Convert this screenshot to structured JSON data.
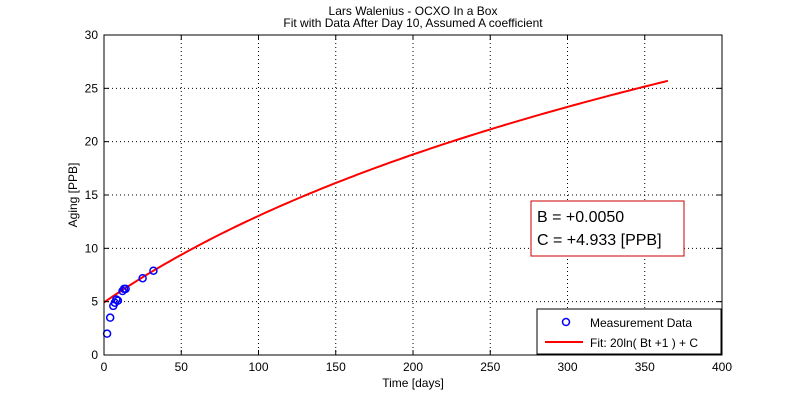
{
  "chart_data": {
    "type": "scatter",
    "title": "Lars Walenius - OCXO In a Box",
    "subtitle": "Fit with Data After Day 10, Assumed A coefficient",
    "xlabel": "Time [days]",
    "ylabel": "Aging [PPB]",
    "xlim": [
      0,
      400
    ],
    "ylim": [
      0,
      30
    ],
    "xticks": [
      0,
      50,
      100,
      150,
      200,
      250,
      300,
      350,
      400
    ],
    "yticks": [
      0,
      5,
      10,
      15,
      20,
      25,
      30
    ],
    "grid": true,
    "legend_position": "bottom-right",
    "series": [
      {
        "name": "Measurement Data",
        "kind": "markers",
        "color": "#0000ff",
        "x": [
          2,
          4,
          6,
          7,
          8,
          9,
          12,
          13,
          14,
          25,
          32
        ],
        "y": [
          2.0,
          3.5,
          4.6,
          4.9,
          5.2,
          5.1,
          6.0,
          6.2,
          6.2,
          7.2,
          7.9
        ]
      },
      {
        "name": "Fit: 20ln( Bt +1 ) + C",
        "kind": "line",
        "color": "#ff0000",
        "x_range": [
          0,
          365
        ],
        "fit": {
          "A": 20,
          "B": 0.005,
          "C": 4.933
        }
      }
    ],
    "annotations": [
      "B = +0.0050",
      "C = +4.933 [PPB]"
    ]
  }
}
